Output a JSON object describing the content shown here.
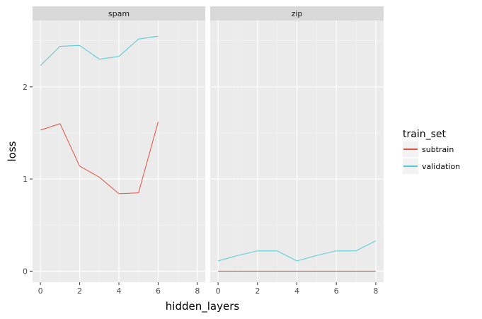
{
  "chart_data": {
    "type": "line",
    "xlabel": "hidden_layers",
    "ylabel": "loss",
    "x_ticks": [
      "0",
      "2",
      "4",
      "6",
      "8"
    ],
    "y_ticks": [
      "0",
      "1",
      "2"
    ],
    "xlim": [
      -0.4,
      8.4
    ],
    "ylim": [
      -0.12,
      2.72
    ],
    "grid": true,
    "legend": {
      "title": "train_set",
      "position": "right",
      "entries": [
        {
          "label": "subtrain",
          "color": "#e24f3d"
        },
        {
          "label": "validation",
          "color": "#4fc9d6"
        }
      ]
    },
    "panels": [
      {
        "label": "spam",
        "series": [
          {
            "name": "subtrain",
            "color": "#e24f3d",
            "x": [
              0,
              1,
              2,
              3,
              4,
              5,
              6
            ],
            "y": [
              1.53,
              1.6,
              1.14,
              1.02,
              0.84,
              0.85,
              1.62
            ]
          },
          {
            "name": "validation",
            "color": "#4fc9d6",
            "x": [
              0,
              1,
              2,
              3,
              4,
              5,
              6
            ],
            "y": [
              2.23,
              2.44,
              2.45,
              2.3,
              2.33,
              2.52,
              2.55
            ]
          }
        ]
      },
      {
        "label": "zip",
        "series": [
          {
            "name": "subtrain",
            "color": "#e24f3d",
            "x": [
              0,
              1,
              2,
              3,
              4,
              5,
              6,
              7,
              8
            ],
            "y": [
              0,
              0,
              0,
              0,
              0,
              0,
              0,
              0,
              0
            ]
          },
          {
            "name": "validation",
            "color": "#4fc9d6",
            "x": [
              0,
              1,
              2,
              3,
              4,
              5,
              6,
              7,
              8
            ],
            "y": [
              0.11,
              0.17,
              0.22,
              0.22,
              0.11,
              0.17,
              0.22,
              0.22,
              0.33
            ]
          }
        ]
      }
    ]
  }
}
